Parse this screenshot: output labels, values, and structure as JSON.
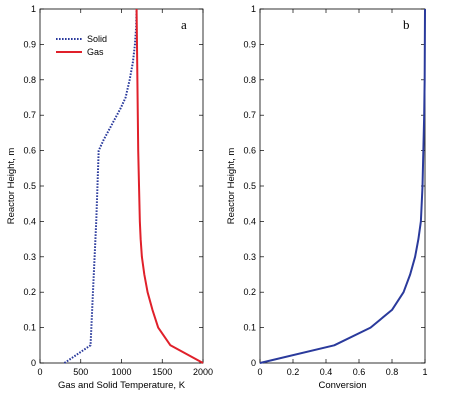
{
  "chart_data": [
    {
      "type": "line",
      "panel_label": "a",
      "xlabel": "Gas and Solid Temperature, K",
      "ylabel": "Reactor Height, m",
      "xlim": [
        0,
        2000
      ],
      "ylim": [
        0,
        1
      ],
      "xticks": [
        0,
        500,
        1000,
        1500,
        2000
      ],
      "yticks": [
        0,
        0.1,
        0.2,
        0.3,
        0.4,
        0.5,
        0.6,
        0.7,
        0.8,
        0.9,
        1
      ],
      "legend": "top-left",
      "grid": false,
      "series": [
        {
          "name": "Solid",
          "color": "#2a3a9c",
          "style": "dotted",
          "x": [
            300,
            620,
            650,
            690,
            720,
            780,
            850,
            920,
            990,
            1050,
            1100,
            1140,
            1165,
            1180,
            1185
          ],
          "y": [
            0,
            0.05,
            0.2,
            0.4,
            0.6,
            0.63,
            0.66,
            0.69,
            0.72,
            0.75,
            0.8,
            0.85,
            0.9,
            0.95,
            1
          ]
        },
        {
          "name": "Gas",
          "color": "#e0202a",
          "style": "solid",
          "x": [
            2000,
            1600,
            1450,
            1380,
            1320,
            1280,
            1250,
            1235,
            1225,
            1215,
            1205,
            1200,
            1195,
            1190,
            1185
          ],
          "y": [
            0,
            0.05,
            0.1,
            0.15,
            0.2,
            0.25,
            0.3,
            0.35,
            0.4,
            0.5,
            0.6,
            0.7,
            0.8,
            0.9,
            1
          ]
        }
      ]
    },
    {
      "type": "line",
      "panel_label": "b",
      "xlabel": "Conversion",
      "ylabel": "Reactor Height, m",
      "xlim": [
        0,
        1
      ],
      "ylim": [
        0,
        1
      ],
      "xticks": [
        0,
        0.2,
        0.4,
        0.6,
        0.8,
        1
      ],
      "yticks": [
        0,
        0.1,
        0.2,
        0.3,
        0.4,
        0.5,
        0.6,
        0.7,
        0.8,
        0.9,
        1
      ],
      "grid": false,
      "series": [
        {
          "color": "#2a3a9c",
          "style": "solid",
          "x": [
            0,
            0.45,
            0.67,
            0.8,
            0.87,
            0.91,
            0.94,
            0.96,
            0.975,
            0.985,
            0.99,
            0.995,
            0.998,
            1
          ],
          "y": [
            0,
            0.05,
            0.1,
            0.15,
            0.2,
            0.25,
            0.3,
            0.35,
            0.4,
            0.5,
            0.6,
            0.7,
            0.8,
            1
          ]
        }
      ]
    }
  ]
}
